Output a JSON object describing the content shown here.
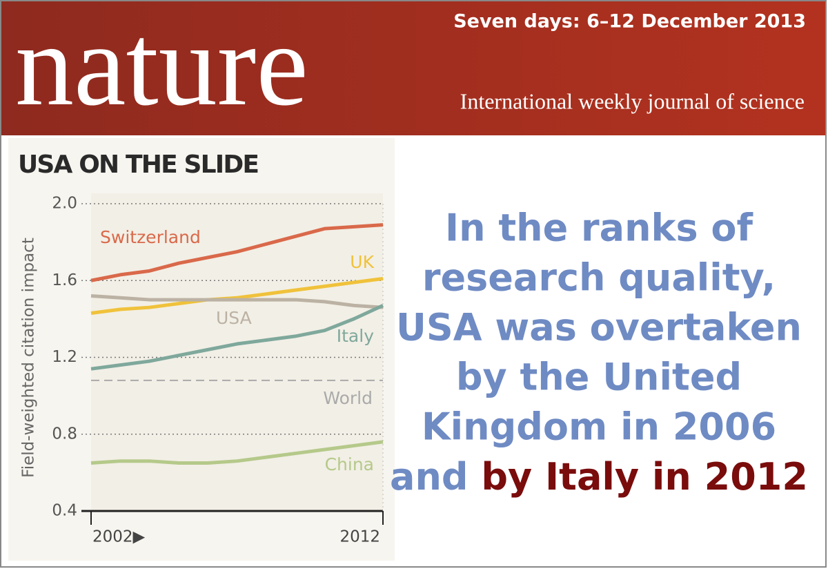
{
  "header": {
    "logo": "nature",
    "dateline": "Seven days: 6–12 December 2013",
    "tagline": "International weekly journal of science"
  },
  "chart_data": {
    "type": "line",
    "title": "USA ON THE SLIDE",
    "y_label": "Field-weighted citation impact",
    "x": [
      2002,
      2003,
      2004,
      2005,
      2006,
      2007,
      2008,
      2009,
      2010,
      2011,
      2012
    ],
    "xlim": [
      2002,
      2012
    ],
    "xticks": [
      {
        "value": 2002,
        "label": "2002▶"
      },
      2012
    ],
    "ylim": [
      0.4,
      2
    ],
    "yticks": [
      0.4,
      0.8,
      1.2,
      1.6,
      {
        "value": 2,
        "label": "2.0"
      }
    ],
    "grid": true,
    "series": [
      {
        "name": "Switzerland",
        "color": "#d9694a",
        "values": [
          1.6,
          1.63,
          1.65,
          1.69,
          1.72,
          1.75,
          1.79,
          1.83,
          1.87,
          1.88,
          1.89
        ]
      },
      {
        "name": "UK",
        "color": "#f0c23b",
        "values": [
          1.43,
          1.45,
          1.46,
          1.48,
          1.5,
          1.51,
          1.53,
          1.55,
          1.57,
          1.59,
          1.61
        ]
      },
      {
        "name": "USA",
        "color": "#bcb2a4",
        "values": [
          1.52,
          1.51,
          1.5,
          1.5,
          1.5,
          1.5,
          1.5,
          1.5,
          1.49,
          1.47,
          1.46
        ]
      },
      {
        "name": "Italy",
        "color": "#7fa89c",
        "values": [
          1.14,
          1.16,
          1.18,
          1.21,
          1.24,
          1.27,
          1.29,
          1.31,
          1.34,
          1.4,
          1.47
        ]
      },
      {
        "name": "China",
        "color": "#b5c98a",
        "values": [
          0.65,
          0.66,
          0.66,
          0.65,
          0.65,
          0.66,
          0.68,
          0.7,
          0.72,
          0.74,
          0.76
        ]
      }
    ],
    "reference_lines": [
      {
        "name": "World",
        "value": 1.08,
        "color": "#aaaaaa"
      }
    ]
  },
  "headline": {
    "lines": [
      "In the ranks of",
      "research quality,",
      "USA was overtaken",
      "by the United",
      "Kingdom in 2006",
      "and"
    ],
    "highlight": "by Italy in 2012"
  }
}
